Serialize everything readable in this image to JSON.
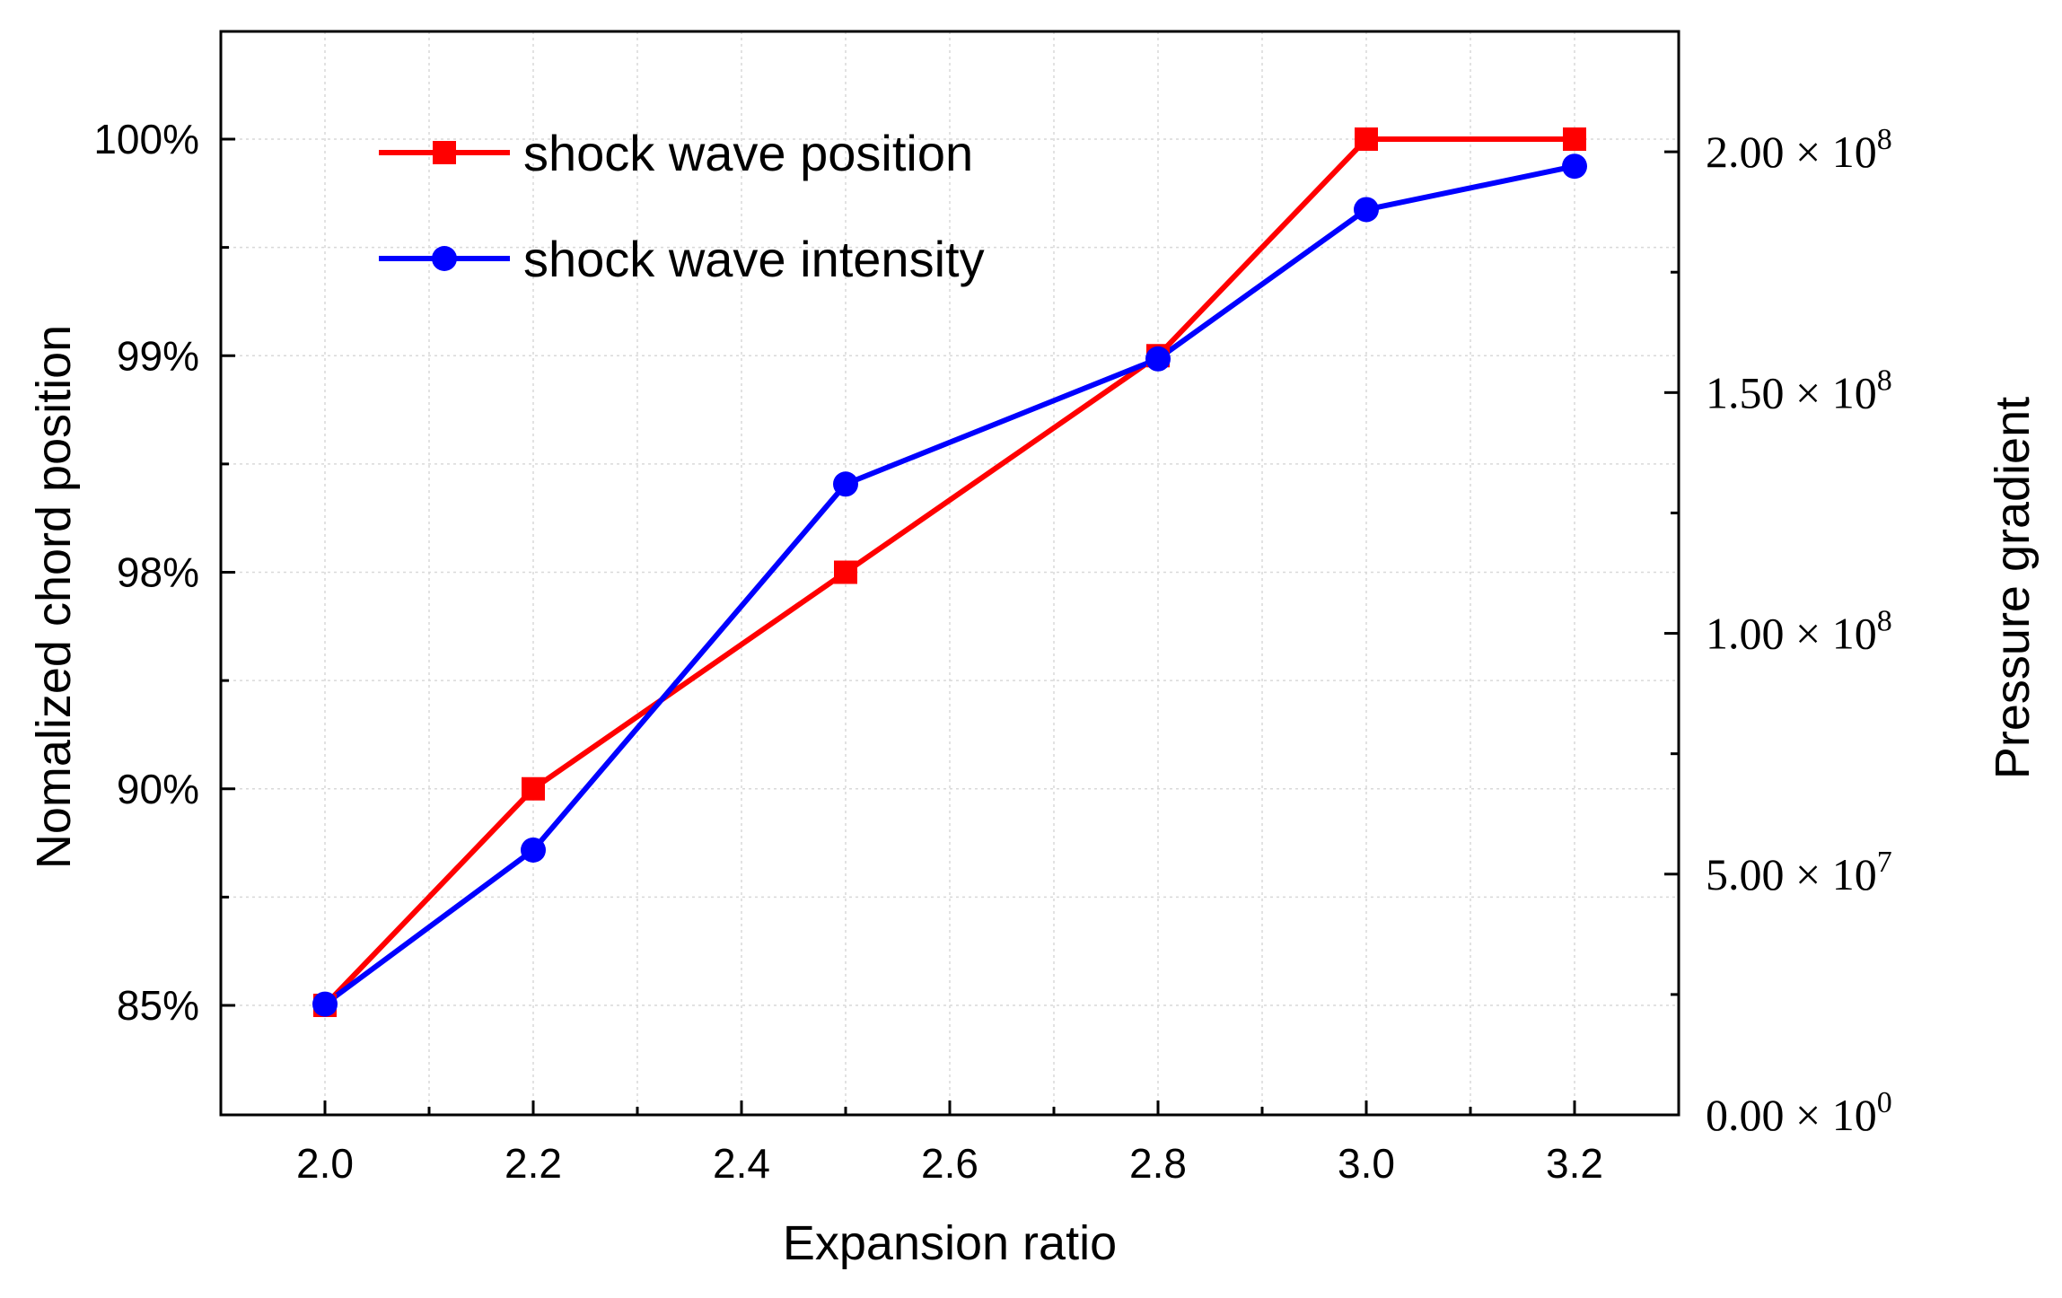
{
  "chart_data": {
    "type": "line",
    "x": [
      2.0,
      2.2,
      2.5,
      2.8,
      3.0,
      3.2
    ],
    "xlim": [
      1.9,
      3.3
    ],
    "x_ticks": [
      "2.0",
      "2.2",
      "2.4",
      "2.6",
      "2.8",
      "3.0",
      "3.2"
    ],
    "x_tick_values": [
      2.0,
      2.2,
      2.4,
      2.6,
      2.8,
      3.0,
      3.2
    ],
    "xlabel": "Expansion ratio",
    "y_left": {
      "label": "Nomalized chord position",
      "tick_labels": [
        "85%",
        "90%",
        "98%",
        "99%",
        "100%"
      ],
      "scale": "categorical-levels, evenly spaced"
    },
    "y_right": {
      "label": "Pressure gradient",
      "ylim": [
        0,
        225000000
      ],
      "tick_values": [
        0,
        50000000,
        100000000,
        150000000,
        200000000
      ],
      "tick_mantissas": [
        "0.00",
        "5.00",
        "1.00",
        "1.50",
        "2.00"
      ],
      "tick_exponents": [
        "0",
        "7",
        "8",
        "8",
        "8"
      ],
      "times_symbol": "×",
      "base": "10"
    },
    "series": [
      {
        "name": "shock wave position",
        "color": "#ff0000",
        "marker": "square",
        "axis": "left",
        "values": [
          "85%",
          "90%",
          "98%",
          "99%",
          "100%",
          "100%"
        ]
      },
      {
        "name": "shock wave intensity",
        "color": "#0000ff",
        "marker": "circle",
        "axis": "right",
        "values": [
          23000000,
          55000000,
          131000000,
          157000000,
          188000000,
          197000000
        ]
      }
    ]
  }
}
